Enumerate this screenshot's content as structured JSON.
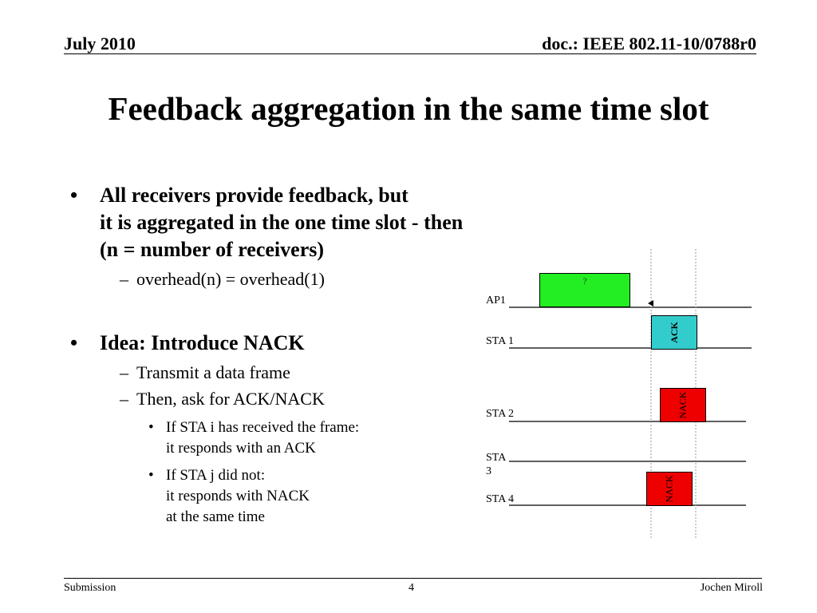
{
  "header": {
    "date": "July 2010",
    "doc": "doc.: IEEE 802.11-10/0788r0"
  },
  "title": "Feedback aggregation in the same time slot",
  "items": [
    {
      "level": 1,
      "lines": [
        "All receivers provide feedback, but",
        "it is aggregated in the one time slot - then",
        "(n = number of receivers)"
      ]
    },
    {
      "level": 2,
      "lines": [
        "overhead(n) = overhead(1)"
      ]
    },
    {
      "level": 1,
      "lines": [
        "Idea: Introduce NACK"
      ]
    },
    {
      "level": 2,
      "lines": [
        "Transmit a data frame"
      ]
    },
    {
      "level": 2,
      "lines": [
        "Then, ask for ACK/NACK"
      ]
    },
    {
      "level": 3,
      "lines": [
        "If STA i has received the frame:",
        "it responds with an ACK"
      ]
    },
    {
      "level": 3,
      "lines": [
        "If STA j did not:",
        "it responds with NACK",
        "at the same time"
      ]
    }
  ],
  "diagram": {
    "lanes": [
      "AP1",
      "STA 1",
      "STA 2",
      "STA 3",
      "STA 4"
    ],
    "frames": [
      "?",
      "ACK",
      "NACK",
      "NACK"
    ]
  },
  "footer": {
    "left": "Submission",
    "page": "4",
    "author": "Jochen Miroll"
  }
}
